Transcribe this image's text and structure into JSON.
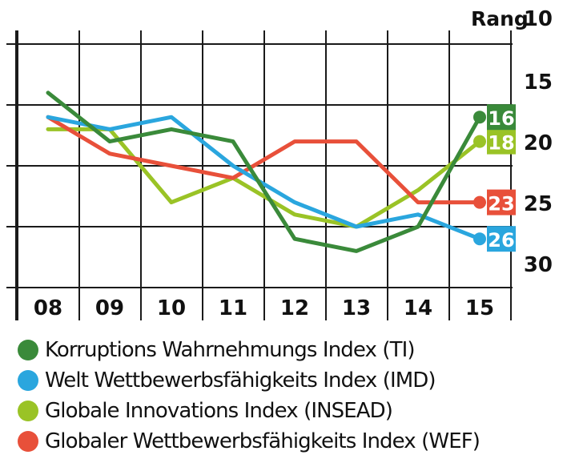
{
  "chart_data": {
    "type": "line",
    "y_unit_label": "Rang",
    "y_inverted": true,
    "ylim": [
      10,
      30
    ],
    "x": [
      "08",
      "09",
      "10",
      "11",
      "12",
      "13",
      "14",
      "15"
    ],
    "y_ticks": [
      "10",
      "15",
      "20",
      "25",
      "30"
    ],
    "series": [
      {
        "name": "Korruptions Wahrnehmungs Index (TI)",
        "color": "#3a8a3a",
        "values": [
          14,
          18,
          17,
          18,
          26,
          27,
          25,
          16
        ],
        "end_label": "16"
      },
      {
        "name": "Welt Wettbewerbsfähigkeits Index (IMD)",
        "color": "#2aa6de",
        "values": [
          16,
          17,
          16,
          20,
          23,
          25,
          24,
          26
        ],
        "end_label": "26"
      },
      {
        "name": "Globale Innovations Index (INSEAD)",
        "color": "#9ac326",
        "values": [
          17,
          17,
          23,
          21,
          24,
          25,
          22,
          18
        ],
        "end_label": "18"
      },
      {
        "name": "Globaler Wettbewerbsfähigkeits Index (WEF)",
        "color": "#e8503a",
        "values": [
          16,
          19,
          20,
          21,
          18,
          18,
          23,
          23
        ],
        "end_label": "23"
      }
    ]
  }
}
